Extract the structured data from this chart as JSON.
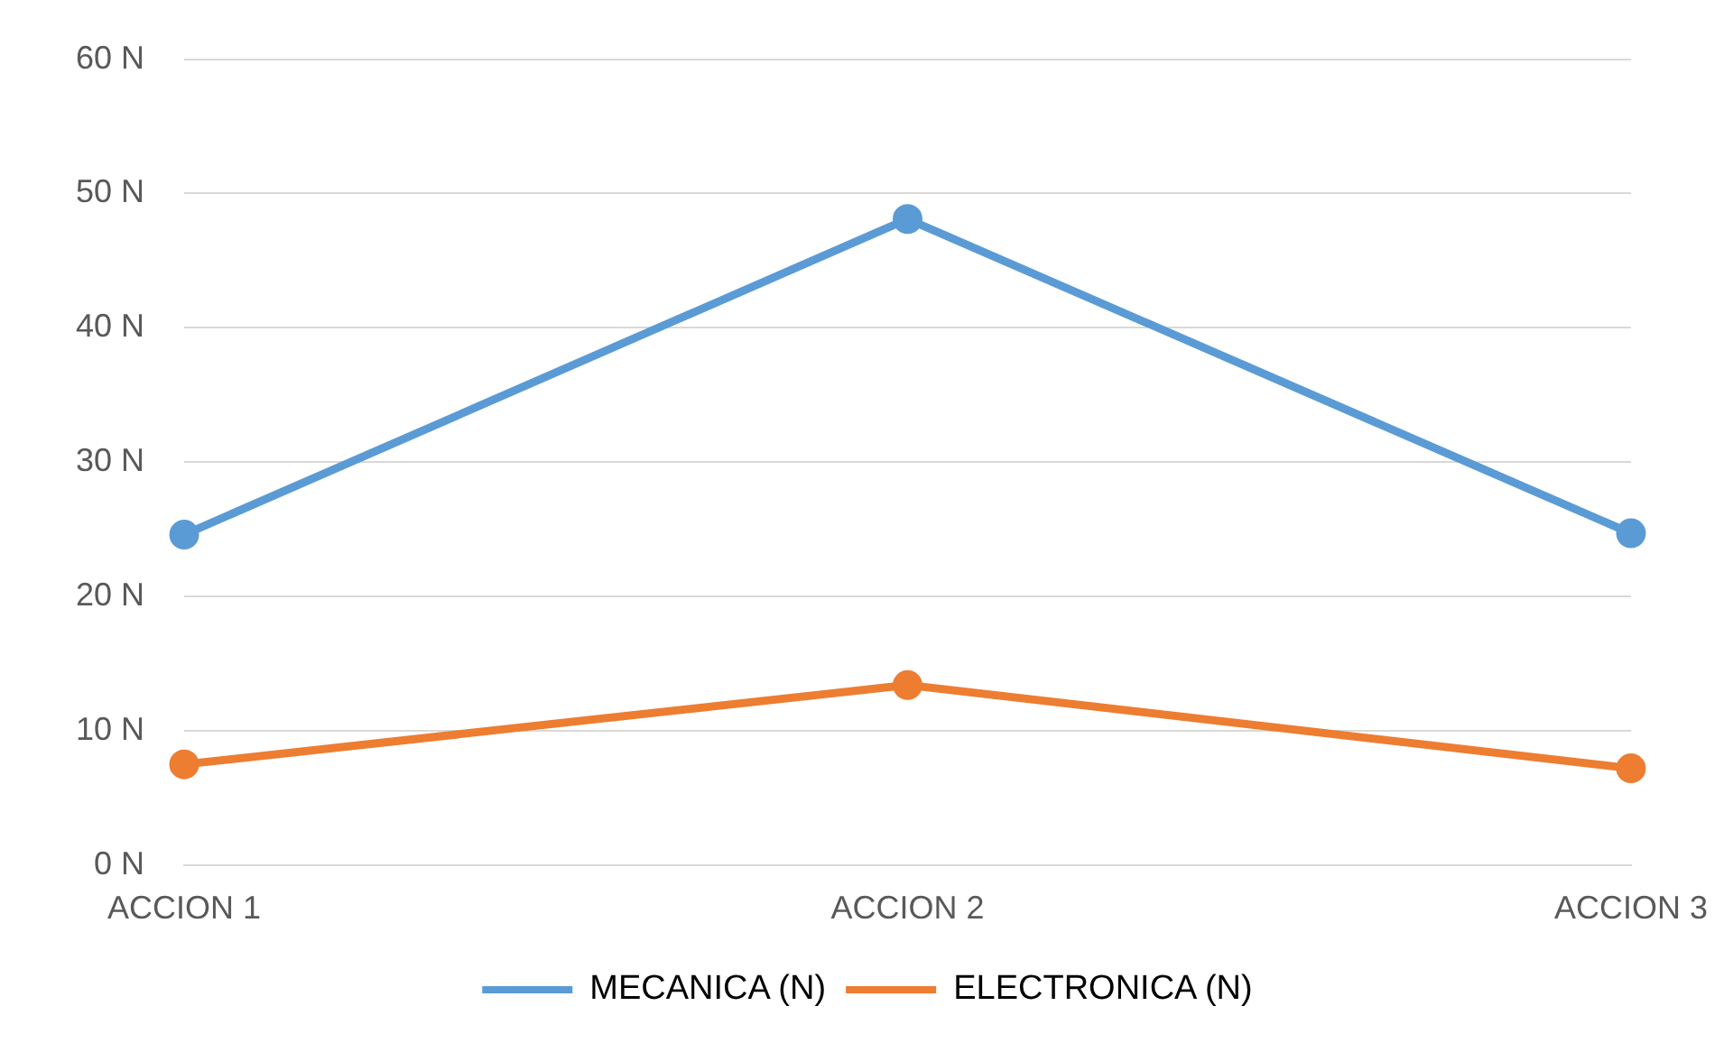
{
  "chart_data": {
    "type": "line",
    "categories": [
      "ACCION 1",
      "ACCION 2",
      "ACCION 3"
    ],
    "series": [
      {
        "name": "MECANICA (N)",
        "color": "#5b9bd5",
        "values": [
          24.6,
          48.1,
          24.7
        ]
      },
      {
        "name": "ELECTRONICA (N)",
        "color": "#ed7d31",
        "values": [
          7.5,
          13.4,
          7.2
        ]
      }
    ],
    "ylim": [
      0,
      60
    ],
    "yticks": [
      {
        "value": 0,
        "label": "0 N"
      },
      {
        "value": 10,
        "label": "10 N"
      },
      {
        "value": 20,
        "label": "20 N"
      },
      {
        "value": 30,
        "label": "30 N"
      },
      {
        "value": 40,
        "label": "40 N"
      },
      {
        "value": 50,
        "label": "50 N"
      },
      {
        "value": 60,
        "label": "60 N"
      }
    ],
    "grid": "y",
    "legend": "bottom",
    "marker": "circle",
    "line_style": "solid"
  }
}
